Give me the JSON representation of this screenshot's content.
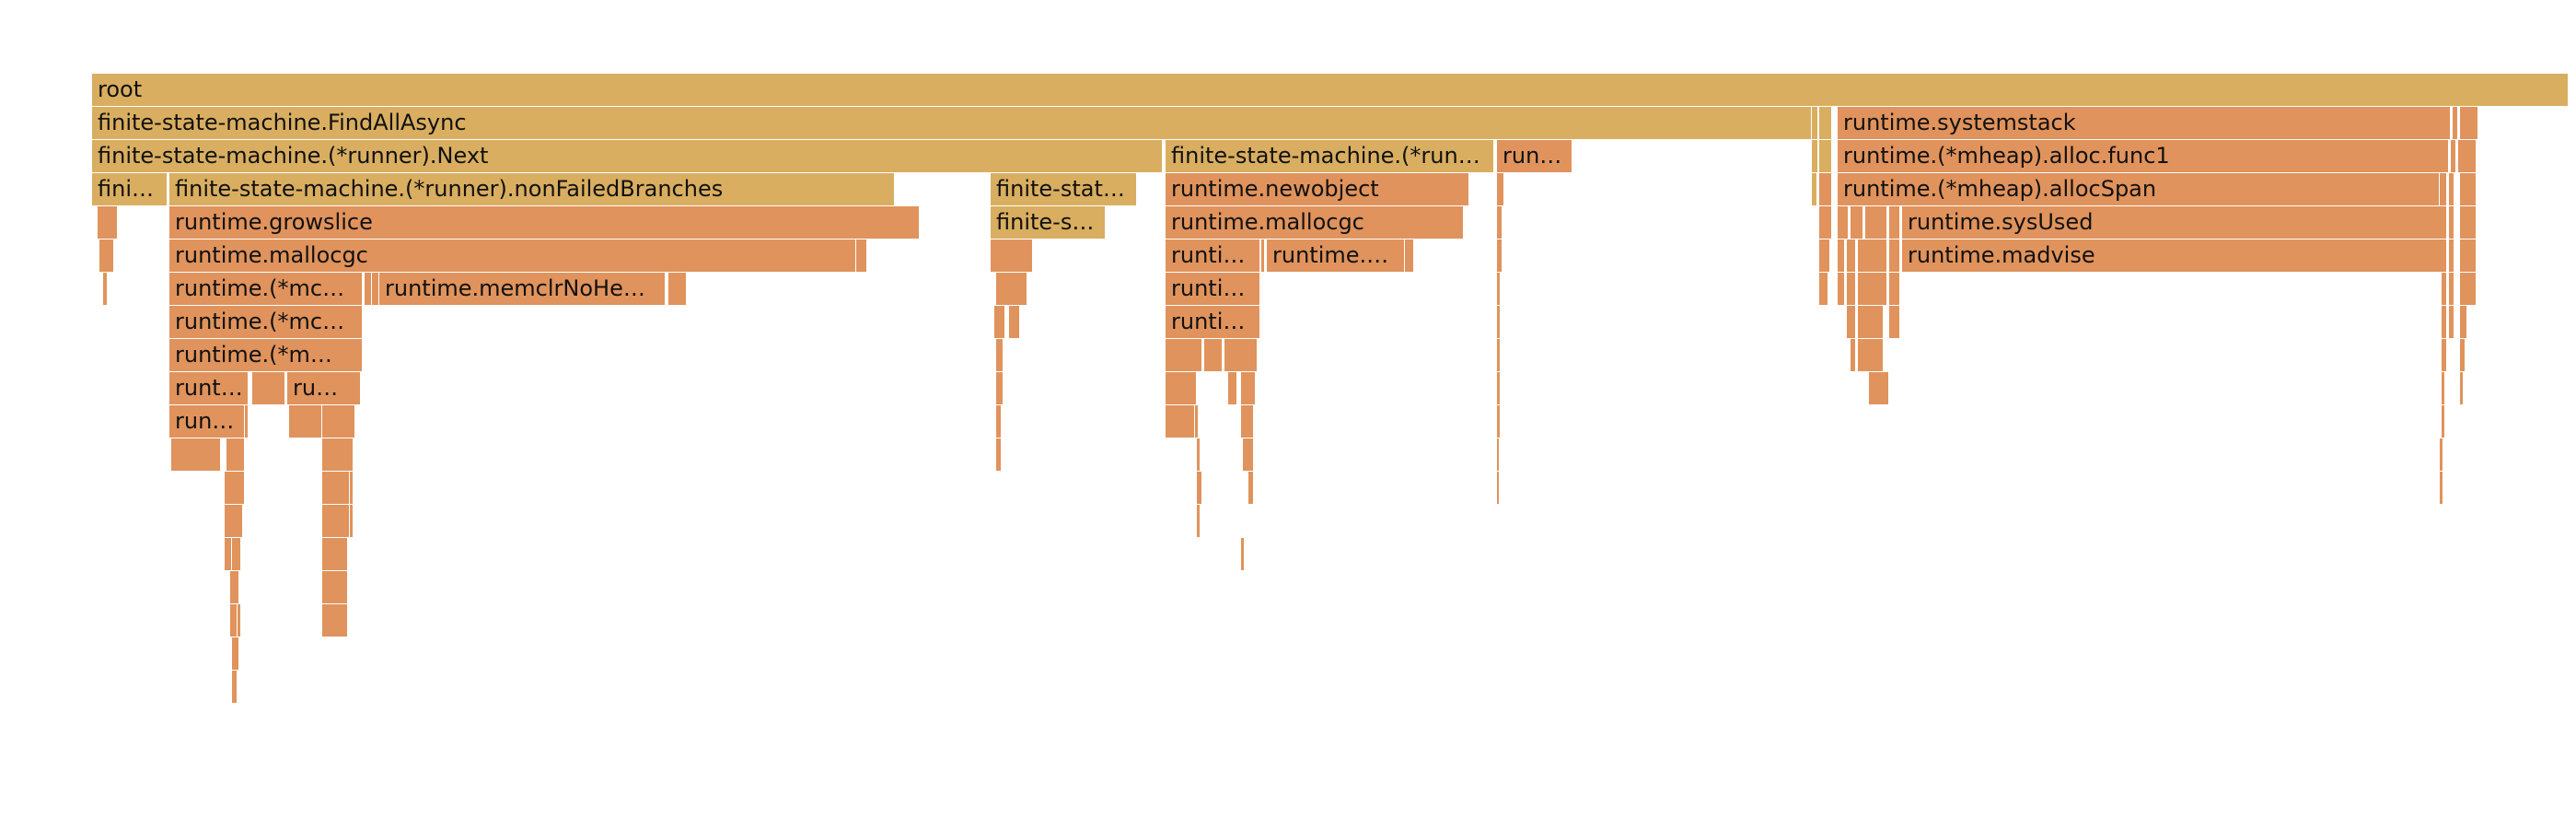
{
  "colors": {
    "app": "#d9ae60",
    "runtime": "#e0935c",
    "background": "#ffffff"
  },
  "labeled_frames": [
    {
      "label": "root",
      "kind": "app"
    },
    {
      "label": "finite-state-machine.FindAllAsync",
      "kind": "app"
    },
    {
      "label": "runtime.systemstack",
      "kind": "rt"
    },
    {
      "label": "finite-state-machine.(*runner).Next",
      "kind": "app"
    },
    {
      "label": "finite-state-machine.(*run…",
      "kind": "app"
    },
    {
      "label": "run…",
      "kind": "rt"
    },
    {
      "label": "runtime.(*mheap).alloc.func1",
      "kind": "rt"
    },
    {
      "label": "fini…",
      "kind": "app"
    },
    {
      "label": "finite-state-machine.(*runner).nonFailedBranches",
      "kind": "app"
    },
    {
      "label": "finite-stat…",
      "kind": "app"
    },
    {
      "label": "runtime.newobject",
      "kind": "rt"
    },
    {
      "label": "runtime.(*mheap).allocSpan",
      "kind": "rt"
    },
    {
      "label": "runtime.growslice",
      "kind": "rt"
    },
    {
      "label": "finite-s…",
      "kind": "app"
    },
    {
      "label": "runtime.mallocgc",
      "kind": "rt"
    },
    {
      "label": "runtime.sysUsed",
      "kind": "rt"
    },
    {
      "label": "runtime.mallocgc",
      "kind": "rt"
    },
    {
      "label": "runti…",
      "kind": "rt"
    },
    {
      "label": "runtime.…",
      "kind": "rt"
    },
    {
      "label": "runtime.madvise",
      "kind": "rt"
    },
    {
      "label": "runtime.(*mc…",
      "kind": "rt"
    },
    {
      "label": "runtime.memclrNoHe…",
      "kind": "rt"
    },
    {
      "label": "runti…",
      "kind": "rt"
    },
    {
      "label": "runtime.(*mc…",
      "kind": "rt"
    },
    {
      "label": "runti…",
      "kind": "rt"
    },
    {
      "label": "runtime.(*m…",
      "kind": "rt"
    },
    {
      "label": "runt…",
      "kind": "rt"
    },
    {
      "label": "ru…",
      "kind": "rt"
    },
    {
      "label": "run…",
      "kind": "rt"
    }
  ]
}
